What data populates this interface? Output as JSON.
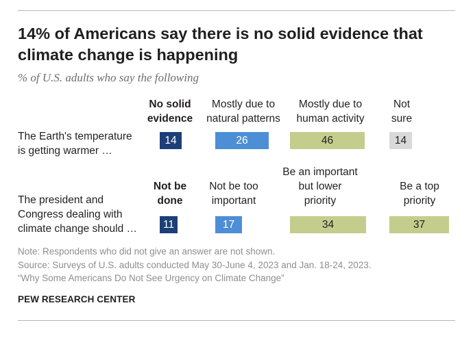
{
  "title": "14% of Americans say there is no solid evidence that climate change is happening",
  "subtitle": "% of U.S. adults who say the following",
  "colors": {
    "dark_blue": "#1c3f77",
    "mid_blue": "#4d8fd6",
    "olive": "#c5cd8d",
    "gray": "#d9d9d9"
  },
  "chart_data": [
    {
      "type": "bar",
      "question": "The Earth's temperature is getting warmer …",
      "categories": [
        "No solid evidence",
        "Mostly due to natural patterns",
        "Mostly due to human activity",
        "Not sure"
      ],
      "values": [
        14,
        26,
        46,
        14
      ],
      "emphasis": "No solid evidence"
    },
    {
      "type": "bar",
      "question": "The president and Congress dealing with climate change should …",
      "categories": [
        "Not be done",
        "Not be too important",
        "Be an important but lower priority",
        "Be a top priority"
      ],
      "values": [
        11,
        17,
        34,
        37
      ],
      "emphasis": "Not be done"
    }
  ],
  "row1": {
    "label_l1": "The Earth's temperature",
    "label_l2": "is getting warmer …",
    "head1_l1": "No solid",
    "head1_l2": "evidence",
    "head2_l1": "Mostly due to",
    "head2_l2": "natural patterns",
    "head3_l1": "Mostly due to",
    "head3_l2": "human activity",
    "head4_l1": "Not",
    "head4_l2": "sure",
    "v1": "14",
    "v2": "26",
    "v3": "46",
    "v4": "14"
  },
  "row2": {
    "label_l1": "The president and",
    "label_l2": "Congress dealing with",
    "label_l3": "climate change should …",
    "head1_l1": "Not be",
    "head1_l2": "done",
    "head2_l1": "Not be too",
    "head2_l2": "important",
    "head3_l1": "Be an important",
    "head3_l2": "but lower",
    "head3_l3": "priority",
    "head4_l1": "Be a top",
    "head4_l2": "priority",
    "v1": "11",
    "v2": "17",
    "v3": "34",
    "v4": "37"
  },
  "notes": {
    "note": "Note: Respondents who did not give an answer are not shown.",
    "source": "Source: Surveys of U.S. adults conducted May 30-June 4, 2023 and Jan. 18-24, 2023.",
    "report": "“Why Some Americans Do Not See Urgency on Climate Change”"
  },
  "brand": "PEW RESEARCH CENTER"
}
